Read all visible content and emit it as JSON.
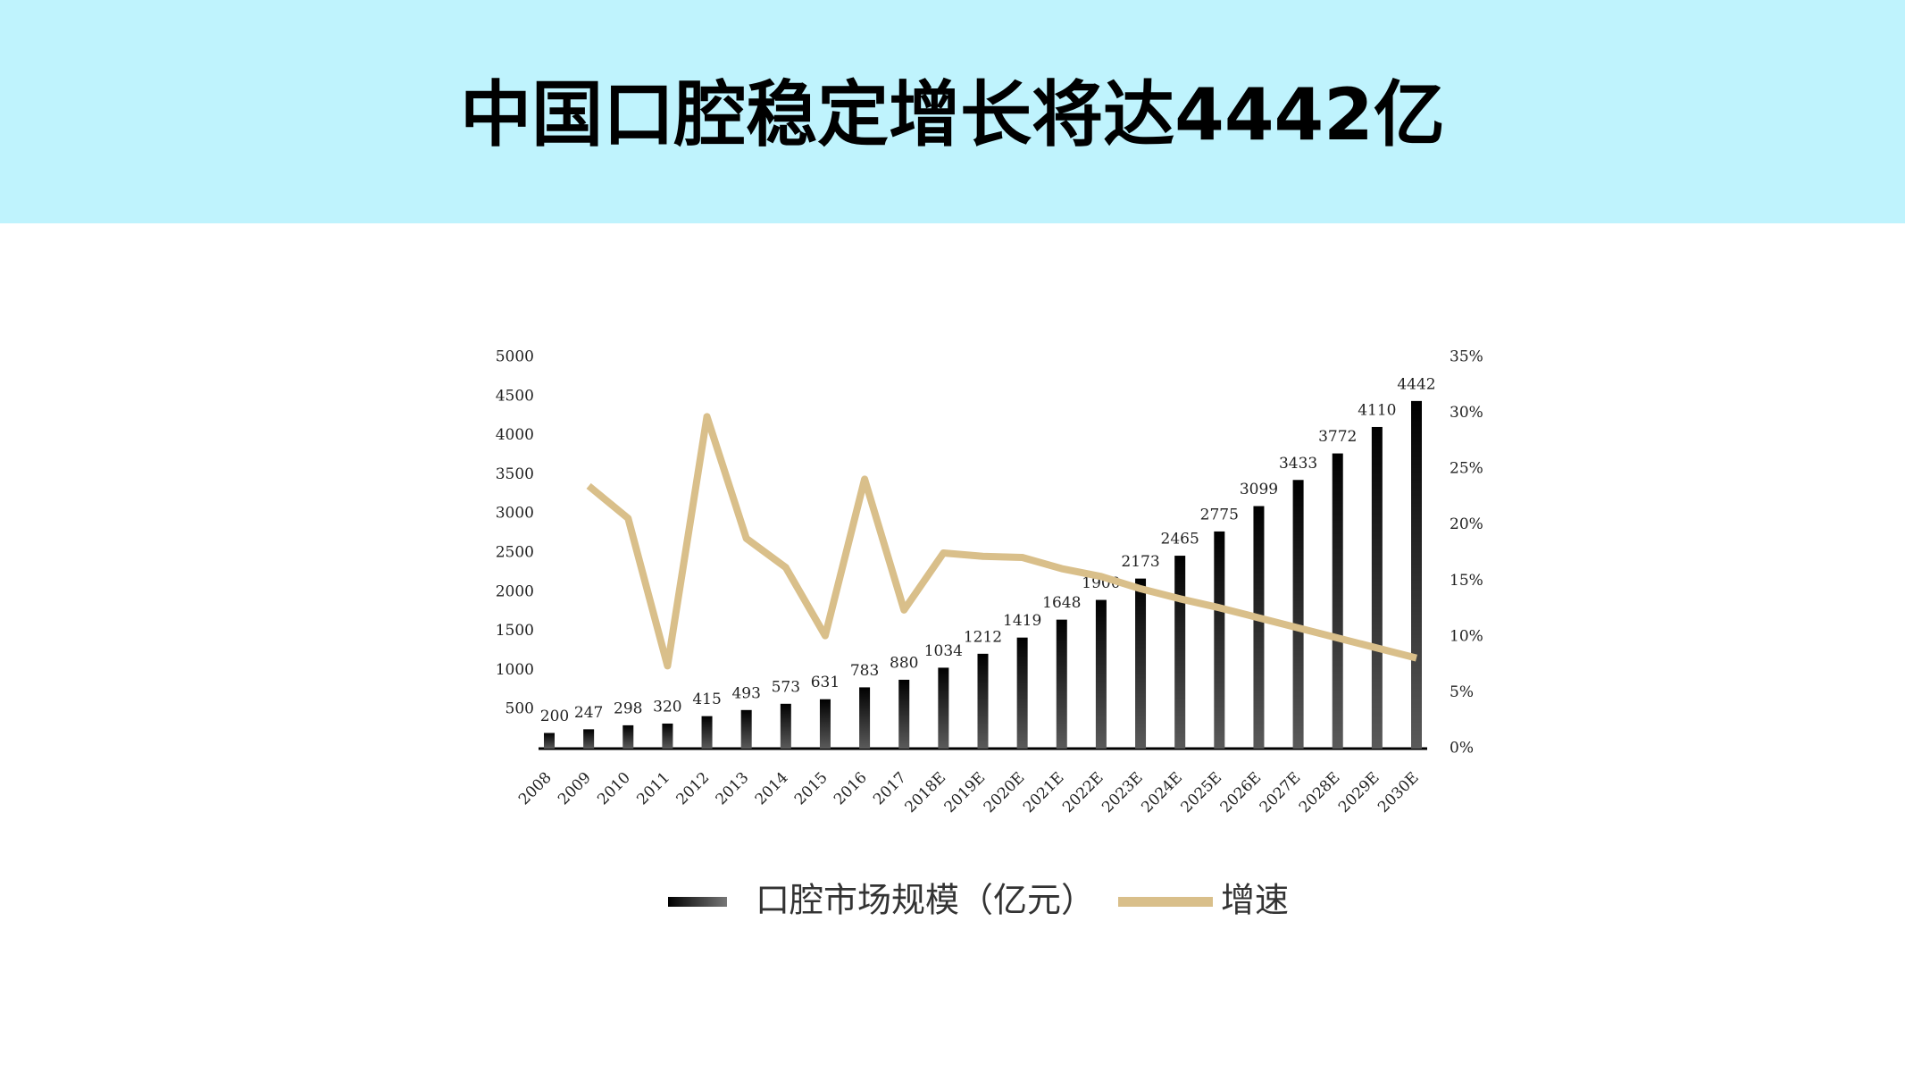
{
  "header": {
    "title": "中国口腔稳定增长将达4442亿"
  },
  "chart_data": {
    "type": "bar_line",
    "categories": [
      "2008",
      "2009",
      "2010",
      "2011",
      "2012",
      "2013",
      "2014",
      "2015",
      "2016",
      "2017",
      "2018E",
      "2019E",
      "2020E",
      "2021E",
      "2022E",
      "2023E",
      "2024E",
      "2025E",
      "2026E",
      "2027E",
      "2028E",
      "2029E",
      "2030E"
    ],
    "series": [
      {
        "name": "口腔市场规模（亿元）",
        "type": "bar",
        "color": "#000000",
        "values": [
          200,
          247,
          298,
          320,
          415,
          493,
          573,
          631,
          783,
          880,
          1034,
          1212,
          1419,
          1648,
          1900,
          2173,
          2465,
          2775,
          3099,
          3433,
          3772,
          4110,
          4442
        ]
      },
      {
        "name": "增速",
        "type": "line",
        "axis": "y2",
        "color": "#d9bf8a",
        "values": [
          null,
          23.5,
          20.6,
          7.4,
          29.7,
          18.8,
          16.2,
          10.1,
          24.1,
          12.4,
          17.5,
          17.2,
          17.1,
          16.1,
          15.4,
          14.3,
          13.4,
          12.6,
          11.7,
          10.8,
          9.9,
          9.0,
          8.1
        ]
      }
    ],
    "ylim": [
      0,
      5000
    ],
    "yticks": [
      500,
      1000,
      1500,
      2000,
      2500,
      3000,
      3500,
      4000,
      4500,
      5000
    ],
    "y2lim": [
      0,
      35
    ],
    "y2ticks": [
      {
        "value": 0,
        "label": "0%"
      },
      {
        "value": 5,
        "label": "5%"
      },
      {
        "value": 10,
        "label": "10%"
      },
      {
        "value": 15,
        "label": "15%"
      },
      {
        "value": 20,
        "label": "20%"
      },
      {
        "value": 25,
        "label": "25%"
      },
      {
        "value": 30,
        "label": "30%"
      },
      {
        "value": 35,
        "label": "35%"
      }
    ],
    "grid": false,
    "legend": "bottom"
  }
}
